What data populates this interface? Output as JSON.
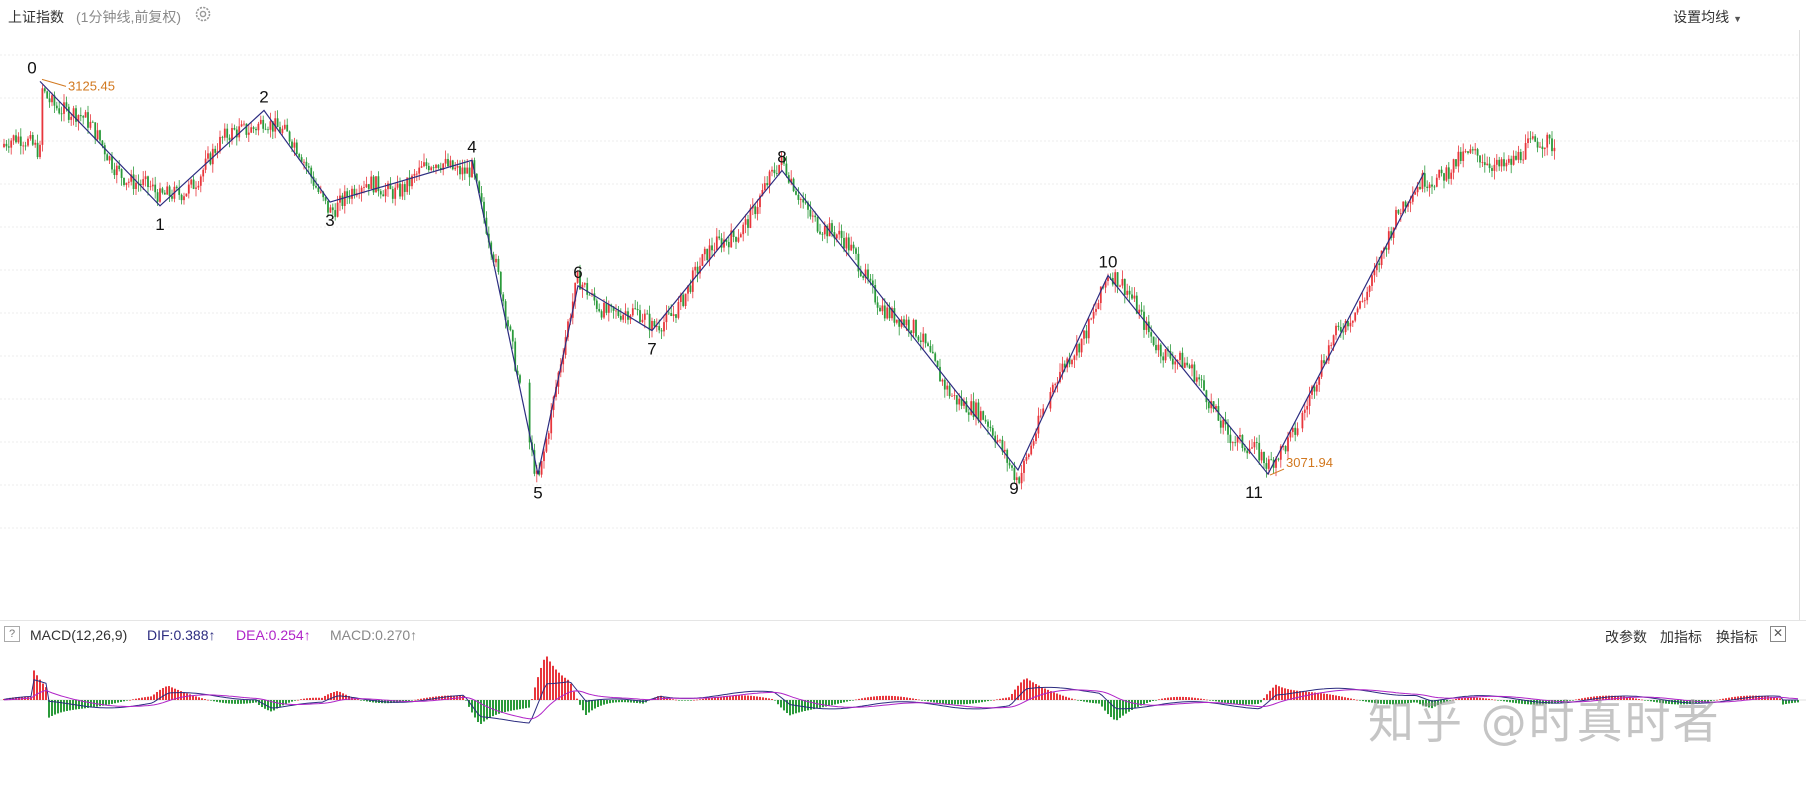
{
  "header": {
    "title": "上证指数",
    "subtitle": "(1分钟线,前复权)",
    "set_ma_label": "设置均线"
  },
  "macd_bar": {
    "help": "?",
    "name": "MACD(12,26,9)",
    "dif_label": "DIF:0.388↑",
    "dea_label": "DEA:0.254↑",
    "macd_label": "MACD:0.270↑",
    "btn_params": "改参数",
    "btn_add": "加指标",
    "btn_switch": "换指标",
    "close": "✕"
  },
  "watermark": "知乎 @时真时者",
  "colors": {
    "up": "#e8363c",
    "down": "#2a9a3a",
    "wave": "#2c2c80",
    "annot": "#d2781f",
    "dif": "#2c2c80",
    "dea": "#b023c8"
  },
  "chart_data": {
    "type": "line",
    "title": "",
    "ylim": [
      3065,
      3130
    ],
    "price_max_label": "3125.45",
    "price_min_label": "3071.94",
    "price_max": 3125.45,
    "price_min": 3071.94,
    "series": [
      {
        "x": [
          0,
          1,
          2,
          3,
          4,
          5,
          6,
          7,
          8,
          9,
          10,
          11,
          12
        ],
        "values": [
          3125.45,
          3108.5,
          3121.5,
          3109.0,
          3114.7,
          3071.9,
          3097.6,
          3091.5,
          3113.3,
          3072.5,
          3099.0,
          3071.94,
          3113.0
        ],
        "point_labels": [
          "0",
          "1",
          "2",
          "3",
          "4",
          "5",
          "6",
          "7",
          "8",
          "9",
          "10",
          "11",
          ""
        ]
      }
    ],
    "pivot_time_index": [
      40,
      160,
      264,
      330,
      472,
      538,
      578,
      652,
      782,
      1018,
      1108,
      1268,
      1424
    ],
    "tail_time_index": 1556
  }
}
